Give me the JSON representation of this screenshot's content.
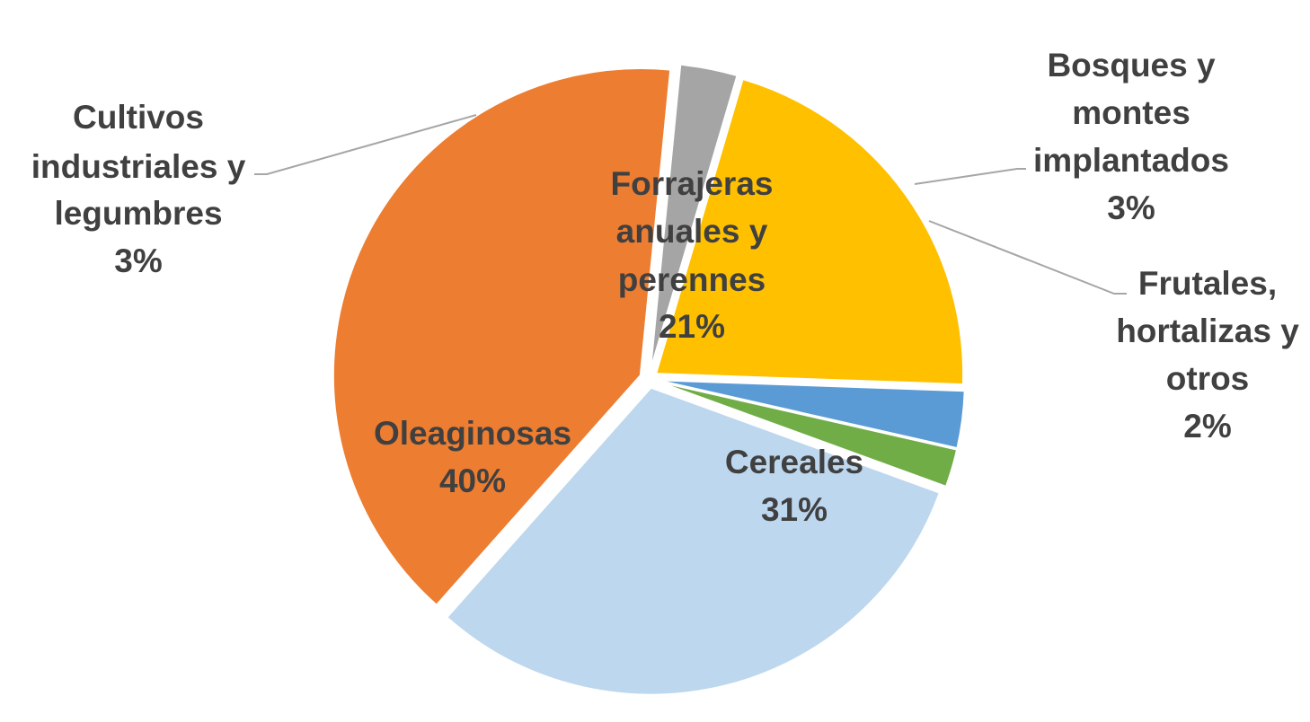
{
  "chart_data": {
    "type": "pie",
    "start_angle_deg": 110,
    "direction": "clockwise",
    "exploded": true,
    "slices": [
      {
        "label": "Cereales",
        "value": 31,
        "value_label": "31%",
        "color": "#BDD7EE"
      },
      {
        "label": "Oleaginosas",
        "value": 40,
        "value_label": "40%",
        "color": "#ED7D31"
      },
      {
        "label": "Cultivos industriales y legumbres",
        "value": 3,
        "value_label": "3%",
        "color": "#A5A5A5"
      },
      {
        "label": "Forrajeras anuales y perennes",
        "value": 21,
        "value_label": "21%",
        "color": "#FFC000"
      },
      {
        "label": "Bosques y montes implantados",
        "value": 3,
        "value_label": "3%",
        "color": "#5B9BD5"
      },
      {
        "label": "Frutales, hortalizas y otros",
        "value": 2,
        "value_label": "2%",
        "color": "#70AD47"
      }
    ],
    "labels": {
      "cereales": [
        "Cereales",
        "31%"
      ],
      "oleaginosas": [
        "Oleaginosas",
        "40%"
      ],
      "cultivos": [
        "Cultivos",
        "industriales y",
        "legumbres",
        "3%"
      ],
      "forrajeras": [
        "Forrajeras",
        "anuales y",
        "perennes",
        "21%"
      ],
      "bosques": [
        "Bosques y",
        "montes",
        "implantados",
        "3%"
      ],
      "frutales": [
        "Frutales,",
        "hortalizas y",
        "otros",
        "2%"
      ]
    }
  }
}
